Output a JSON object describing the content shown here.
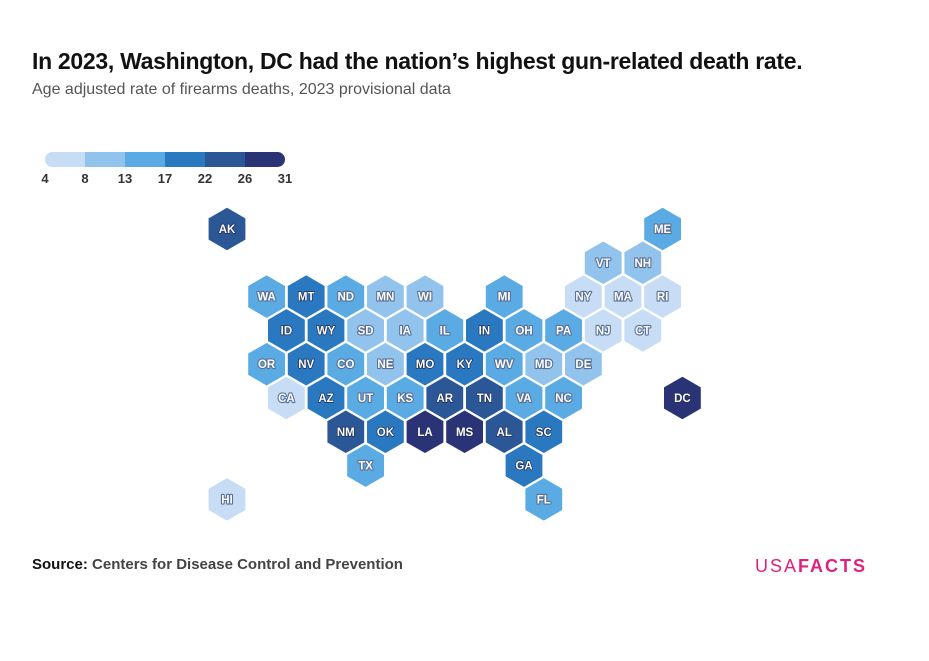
{
  "header": {
    "title": "In 2023, Washington, DC had the nation’s highest gun-related death rate.",
    "subtitle": "Age adjusted rate of firearms deaths, 2023 provisional data"
  },
  "legend": {
    "ticks": [
      "4",
      "8",
      "13",
      "17",
      "22",
      "26",
      "31"
    ],
    "colors": [
      "#c6ddf5",
      "#92c3ec",
      "#5aaae3",
      "#2a78bf",
      "#2c5797",
      "#2a3375"
    ]
  },
  "footer": {
    "source_label": "Source:",
    "source_text": "Centers for Disease Control and Prevention",
    "logo_usa": "USA",
    "logo_facts": "FACTS"
  },
  "chart_data": {
    "type": "hex-tile-map",
    "legend_bins": [
      4,
      8,
      13,
      17,
      22,
      26,
      31
    ],
    "states": [
      {
        "code": "AK",
        "row": 0,
        "col": 0,
        "bin": 5
      },
      {
        "code": "ME",
        "row": 0,
        "col": 11,
        "bin": 3
      },
      {
        "code": "VT",
        "row": 1,
        "col": 9.5,
        "bin": 2
      },
      {
        "code": "NH",
        "row": 1,
        "col": 10.5,
        "bin": 2
      },
      {
        "code": "WA",
        "row": 2,
        "col": 1,
        "bin": 3
      },
      {
        "code": "MT",
        "row": 2,
        "col": 2,
        "bin": 4
      },
      {
        "code": "ND",
        "row": 2,
        "col": 3,
        "bin": 3
      },
      {
        "code": "MN",
        "row": 2,
        "col": 4,
        "bin": 2
      },
      {
        "code": "WI",
        "row": 2,
        "col": 5,
        "bin": 2
      },
      {
        "code": "MI",
        "row": 2,
        "col": 7,
        "bin": 3
      },
      {
        "code": "NY",
        "row": 2,
        "col": 9,
        "bin": 1
      },
      {
        "code": "MA",
        "row": 2,
        "col": 10,
        "bin": 1
      },
      {
        "code": "RI",
        "row": 2,
        "col": 11,
        "bin": 1
      },
      {
        "code": "ID",
        "row": 3,
        "col": 1.5,
        "bin": 4
      },
      {
        "code": "WY",
        "row": 3,
        "col": 2.5,
        "bin": 4
      },
      {
        "code": "SD",
        "row": 3,
        "col": 3.5,
        "bin": 2
      },
      {
        "code": "IA",
        "row": 3,
        "col": 4.5,
        "bin": 2
      },
      {
        "code": "IL",
        "row": 3,
        "col": 5.5,
        "bin": 3
      },
      {
        "code": "IN",
        "row": 3,
        "col": 6.5,
        "bin": 4
      },
      {
        "code": "OH",
        "row": 3,
        "col": 7.5,
        "bin": 3
      },
      {
        "code": "PA",
        "row": 3,
        "col": 8.5,
        "bin": 3
      },
      {
        "code": "NJ",
        "row": 3,
        "col": 9.5,
        "bin": 1
      },
      {
        "code": "CT",
        "row": 3,
        "col": 10.5,
        "bin": 1
      },
      {
        "code": "OR",
        "row": 4,
        "col": 1,
        "bin": 3
      },
      {
        "code": "NV",
        "row": 4,
        "col": 2,
        "bin": 4
      },
      {
        "code": "CO",
        "row": 4,
        "col": 3,
        "bin": 3
      },
      {
        "code": "NE",
        "row": 4,
        "col": 4,
        "bin": 2
      },
      {
        "code": "MO",
        "row": 4,
        "col": 5,
        "bin": 4
      },
      {
        "code": "KY",
        "row": 4,
        "col": 6,
        "bin": 4
      },
      {
        "code": "WV",
        "row": 4,
        "col": 7,
        "bin": 3
      },
      {
        "code": "MD",
        "row": 4,
        "col": 8,
        "bin": 2
      },
      {
        "code": "DE",
        "row": 4,
        "col": 9,
        "bin": 2
      },
      {
        "code": "CA",
        "row": 5,
        "col": 1.5,
        "bin": 1
      },
      {
        "code": "AZ",
        "row": 5,
        "col": 2.5,
        "bin": 4
      },
      {
        "code": "UT",
        "row": 5,
        "col": 3.5,
        "bin": 3
      },
      {
        "code": "KS",
        "row": 5,
        "col": 4.5,
        "bin": 3
      },
      {
        "code": "AR",
        "row": 5,
        "col": 5.5,
        "bin": 5
      },
      {
        "code": "TN",
        "row": 5,
        "col": 6.5,
        "bin": 5
      },
      {
        "code": "VA",
        "row": 5,
        "col": 7.5,
        "bin": 3
      },
      {
        "code": "NC",
        "row": 5,
        "col": 8.5,
        "bin": 3
      },
      {
        "code": "DC",
        "row": 5,
        "col": 11.5,
        "bin": 6
      },
      {
        "code": "NM",
        "row": 6,
        "col": 3,
        "bin": 5
      },
      {
        "code": "OK",
        "row": 6,
        "col": 4,
        "bin": 4
      },
      {
        "code": "LA",
        "row": 6,
        "col": 5,
        "bin": 6
      },
      {
        "code": "MS",
        "row": 6,
        "col": 6,
        "bin": 6
      },
      {
        "code": "AL",
        "row": 6,
        "col": 7,
        "bin": 5
      },
      {
        "code": "SC",
        "row": 6,
        "col": 8,
        "bin": 4
      },
      {
        "code": "TX",
        "row": 7,
        "col": 3.5,
        "bin": 3
      },
      {
        "code": "GA",
        "row": 7,
        "col": 7.5,
        "bin": 4
      },
      {
        "code": "HI",
        "row": 8,
        "col": 0,
        "bin": 1
      },
      {
        "code": "FL",
        "row": 8,
        "col": 8,
        "bin": 3
      }
    ]
  }
}
